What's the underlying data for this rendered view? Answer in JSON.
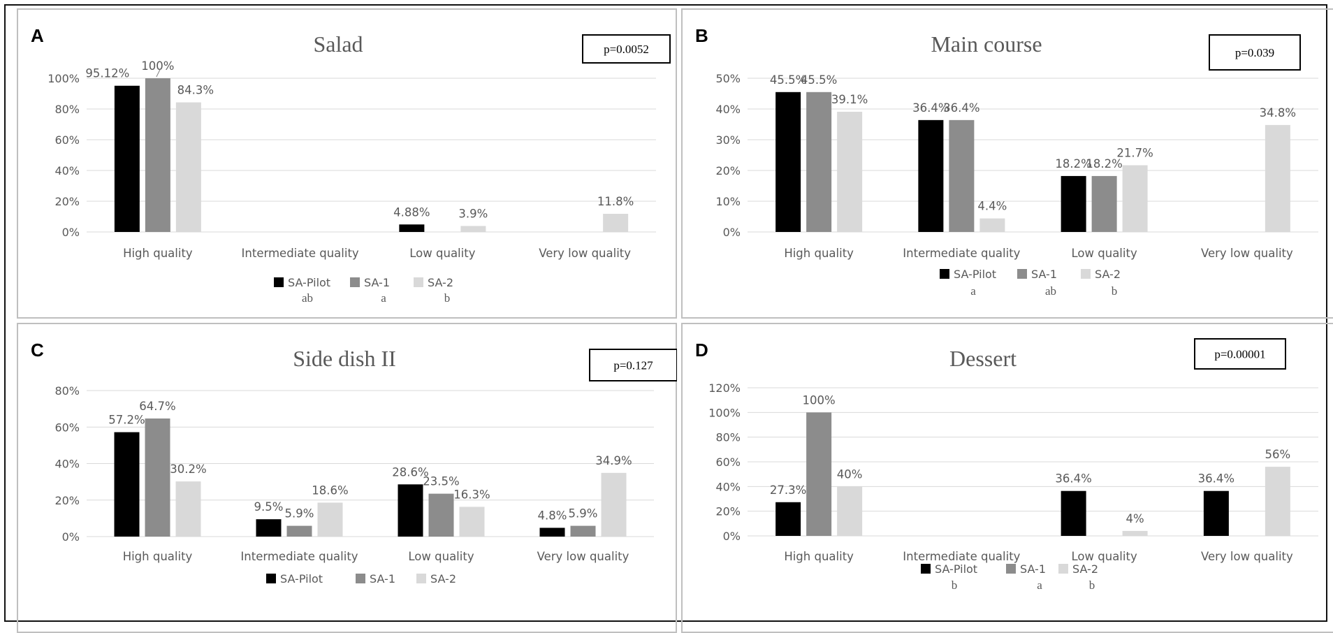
{
  "figure": {
    "series_colors": [
      "#000000",
      "#8c8c8c",
      "#d9d9d9"
    ],
    "grid_color": "#d9d9d9",
    "panel_border_color": "#bfbfbf",
    "text_color": "#595959"
  },
  "chart_data": [
    {
      "panel_letter": "A",
      "type": "bar",
      "title": "Salad",
      "p_value": "p=0.0052",
      "categories": [
        "High quality",
        "Intermediate quality",
        "Low quality",
        "Very low quality"
      ],
      "series": [
        {
          "name": "SA-Pilot",
          "group_letter": "ab",
          "values": [
            95.12,
            null,
            4.88,
            null
          ],
          "labels": [
            "95.12%",
            null,
            "4.88%",
            null
          ]
        },
        {
          "name": "SA-1",
          "group_letter": "a",
          "values": [
            100,
            null,
            null,
            null
          ],
          "labels": [
            "100%",
            null,
            null,
            null
          ]
        },
        {
          "name": "SA-2",
          "group_letter": "b",
          "values": [
            84.3,
            null,
            3.9,
            11.8
          ],
          "labels": [
            "84.3%",
            null,
            "3.9%",
            "11.8%"
          ]
        }
      ],
      "y_ticks": [
        "0%",
        "20%",
        "40%",
        "60%",
        "80%",
        "100%"
      ],
      "ylim": [
        0,
        100
      ],
      "legend_position": "bottom",
      "grid": true
    },
    {
      "panel_letter": "B",
      "type": "bar",
      "title": "Main course",
      "p_value": "p=0.039",
      "categories": [
        "High quality",
        "Intermediate quality",
        "Low quality",
        "Very low quality"
      ],
      "series": [
        {
          "name": "SA-Pilot",
          "group_letter": "a",
          "values": [
            45.5,
            36.4,
            18.2,
            null
          ],
          "labels": [
            "45.5%",
            "36.4%",
            "18.2%",
            null
          ]
        },
        {
          "name": "SA-1",
          "group_letter": "ab",
          "values": [
            45.5,
            36.4,
            18.2,
            null
          ],
          "labels": [
            "45.5%",
            "36.4%",
            "18.2%",
            null
          ]
        },
        {
          "name": "SA-2",
          "group_letter": "b",
          "values": [
            39.1,
            4.4,
            21.7,
            34.8
          ],
          "labels": [
            "39.1%",
            "4.4%",
            "21.7%",
            "34.8%"
          ]
        }
      ],
      "y_ticks": [
        "0%",
        "10%",
        "20%",
        "30%",
        "40%",
        "50%"
      ],
      "ylim": [
        0,
        50
      ],
      "legend_position": "bottom",
      "grid": true
    },
    {
      "panel_letter": "C",
      "type": "bar",
      "title": "Side dish II",
      "p_value": "p=0.127",
      "categories": [
        "High quality",
        "Intermediate quality",
        "Low quality",
        "Very low quality"
      ],
      "series": [
        {
          "name": "SA-Pilot",
          "values": [
            57.2,
            9.5,
            28.6,
            4.8
          ],
          "labels": [
            "57.2%",
            "9.5%",
            "28.6%",
            "4.8%"
          ]
        },
        {
          "name": "SA-1",
          "values": [
            64.7,
            5.9,
            23.5,
            5.9
          ],
          "labels": [
            "64.7%",
            "5.9%",
            "23.5%",
            "5.9%"
          ]
        },
        {
          "name": "SA-2",
          "values": [
            30.2,
            18.6,
            16.3,
            34.9
          ],
          "labels": [
            "30.2%",
            "18.6%",
            "16.3%",
            "34.9%"
          ]
        }
      ],
      "y_ticks": [
        "0%",
        "20%",
        "40%",
        "60%",
        "80%"
      ],
      "ylim": [
        0,
        80
      ],
      "legend_position": "bottom",
      "grid": true
    },
    {
      "panel_letter": "D",
      "type": "bar",
      "title": "Dessert",
      "p_value": "p=0.00001",
      "categories": [
        "High quality",
        "Intermediate quality",
        "Low quality",
        "Very low quality"
      ],
      "series": [
        {
          "name": "SA-Pilot",
          "group_letter": "b",
          "values": [
            27.3,
            null,
            36.4,
            36.4
          ],
          "labels": [
            "27.3%",
            null,
            "36.4%",
            "36.4%"
          ]
        },
        {
          "name": "SA-1",
          "group_letter": "a",
          "values": [
            100,
            null,
            null,
            null
          ],
          "labels": [
            "100%",
            null,
            null,
            null
          ]
        },
        {
          "name": "SA-2",
          "group_letter": "b",
          "values": [
            40,
            null,
            4,
            56
          ],
          "labels": [
            "40%",
            null,
            "4%",
            "56%"
          ]
        }
      ],
      "y_ticks": [
        "0%",
        "20%",
        "40%",
        "60%",
        "80%",
        "100%",
        "120%"
      ],
      "ylim": [
        0,
        120
      ],
      "legend_position": "bottom",
      "grid": true
    }
  ]
}
